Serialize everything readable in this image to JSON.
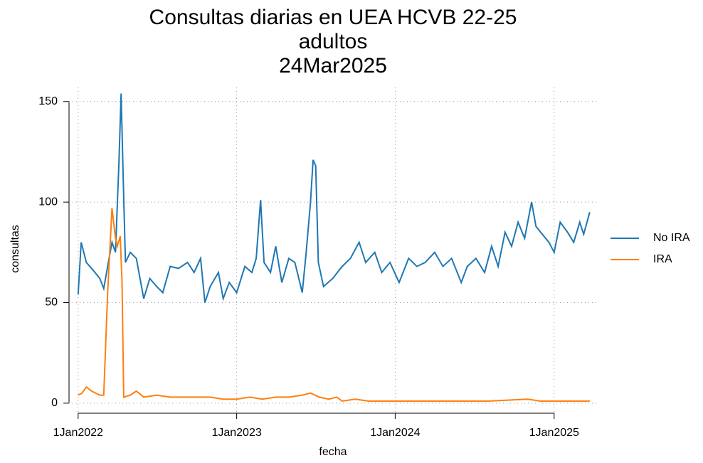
{
  "chart_data": {
    "type": "line",
    "title": [
      "Consultas diarias en UEA HCVB  22-25",
      "adultos",
      "24Mar2025"
    ],
    "x_label": "fecha",
    "y_label": "consultas",
    "xlim": [
      "2021-12-11",
      "2025-04-08"
    ],
    "ylim": [
      -5,
      157
    ],
    "xticks": [
      {
        "value": "2022-01-01",
        "label": "1Jan2022"
      },
      {
        "value": "2023-01-01",
        "label": "1Jan2023"
      },
      {
        "value": "2024-01-01",
        "label": "1Jan2024"
      },
      {
        "value": "2025-01-01",
        "label": "1Jan2025"
      }
    ],
    "yticks": [
      0,
      50,
      100,
      150
    ],
    "grid": true,
    "legend": "right",
    "series": [
      {
        "name": "No IRA",
        "color": "#1f77b4",
        "x": [
          "2022-01-01",
          "2022-01-08",
          "2022-01-20",
          "2022-02-05",
          "2022-02-20",
          "2022-03-01",
          "2022-03-10",
          "2022-03-20",
          "2022-03-28",
          "2022-04-05",
          "2022-04-10",
          "2022-04-15",
          "2022-04-20",
          "2022-05-01",
          "2022-05-15",
          "2022-06-01",
          "2022-06-15",
          "2022-07-01",
          "2022-07-15",
          "2022-08-01",
          "2022-08-20",
          "2022-09-10",
          "2022-09-25",
          "2022-10-10",
          "2022-10-20",
          "2022-11-01",
          "2022-11-20",
          "2022-12-01",
          "2022-12-15",
          "2023-01-01",
          "2023-01-20",
          "2023-02-05",
          "2023-02-15",
          "2023-02-25",
          "2023-03-05",
          "2023-03-20",
          "2023-04-01",
          "2023-04-15",
          "2023-05-01",
          "2023-05-15",
          "2023-06-01",
          "2023-06-10",
          "2023-06-20",
          "2023-06-26",
          "2023-07-02",
          "2023-07-08",
          "2023-07-20",
          "2023-08-10",
          "2023-09-01",
          "2023-09-20",
          "2023-10-10",
          "2023-10-25",
          "2023-11-15",
          "2023-12-01",
          "2023-12-20",
          "2024-01-10",
          "2024-02-01",
          "2024-02-20",
          "2024-03-10",
          "2024-04-01",
          "2024-04-20",
          "2024-05-10",
          "2024-06-01",
          "2024-06-15",
          "2024-07-05",
          "2024-07-25",
          "2024-08-10",
          "2024-08-25",
          "2024-09-10",
          "2024-09-25",
          "2024-10-10",
          "2024-10-25",
          "2024-11-10",
          "2024-11-20",
          "2024-12-01",
          "2024-12-20",
          "2025-01-01",
          "2025-01-15",
          "2025-02-01",
          "2025-02-15",
          "2025-03-01",
          "2025-03-10",
          "2025-03-24"
        ],
        "values": [
          54,
          80,
          70,
          66,
          62,
          57,
          68,
          80,
          75,
          120,
          154,
          110,
          70,
          75,
          72,
          52,
          62,
          58,
          55,
          68,
          67,
          70,
          65,
          72,
          50,
          58,
          65,
          52,
          60,
          55,
          68,
          65,
          72,
          101,
          70,
          65,
          78,
          60,
          72,
          70,
          55,
          75,
          100,
          121,
          118,
          70,
          58,
          62,
          68,
          72,
          80,
          70,
          75,
          65,
          70,
          60,
          72,
          68,
          70,
          75,
          68,
          72,
          60,
          68,
          72,
          65,
          78,
          68,
          85,
          78,
          90,
          82,
          100,
          88,
          85,
          80,
          75,
          90,
          85,
          80,
          90,
          84,
          95
        ]
      },
      {
        "name": "IRA",
        "color": "#ff7f0e",
        "x": [
          "2022-01-01",
          "2022-01-10",
          "2022-01-20",
          "2022-02-01",
          "2022-02-20",
          "2022-03-01",
          "2022-03-10",
          "2022-03-20",
          "2022-03-28",
          "2022-04-01",
          "2022-04-08",
          "2022-04-12",
          "2022-04-16",
          "2022-05-01",
          "2022-05-15",
          "2022-06-01",
          "2022-07-01",
          "2022-08-01",
          "2022-09-01",
          "2022-10-01",
          "2022-11-01",
          "2022-12-01",
          "2023-01-01",
          "2023-02-01",
          "2023-03-01",
          "2023-04-01",
          "2023-05-01",
          "2023-06-01",
          "2023-06-20",
          "2023-07-10",
          "2023-08-01",
          "2023-08-20",
          "2023-09-01",
          "2023-10-01",
          "2023-11-01",
          "2024-01-01",
          "2024-06-01",
          "2024-08-01",
          "2024-11-01",
          "2024-12-01",
          "2025-03-24"
        ],
        "values": [
          4,
          5,
          8,
          6,
          4,
          4,
          55,
          97,
          82,
          78,
          83,
          60,
          3,
          4,
          6,
          3,
          4,
          3,
          3,
          3,
          3,
          2,
          2,
          3,
          2,
          3,
          3,
          4,
          5,
          3,
          2,
          3,
          1,
          2,
          1,
          1,
          1,
          1,
          2,
          1,
          1
        ]
      }
    ]
  }
}
